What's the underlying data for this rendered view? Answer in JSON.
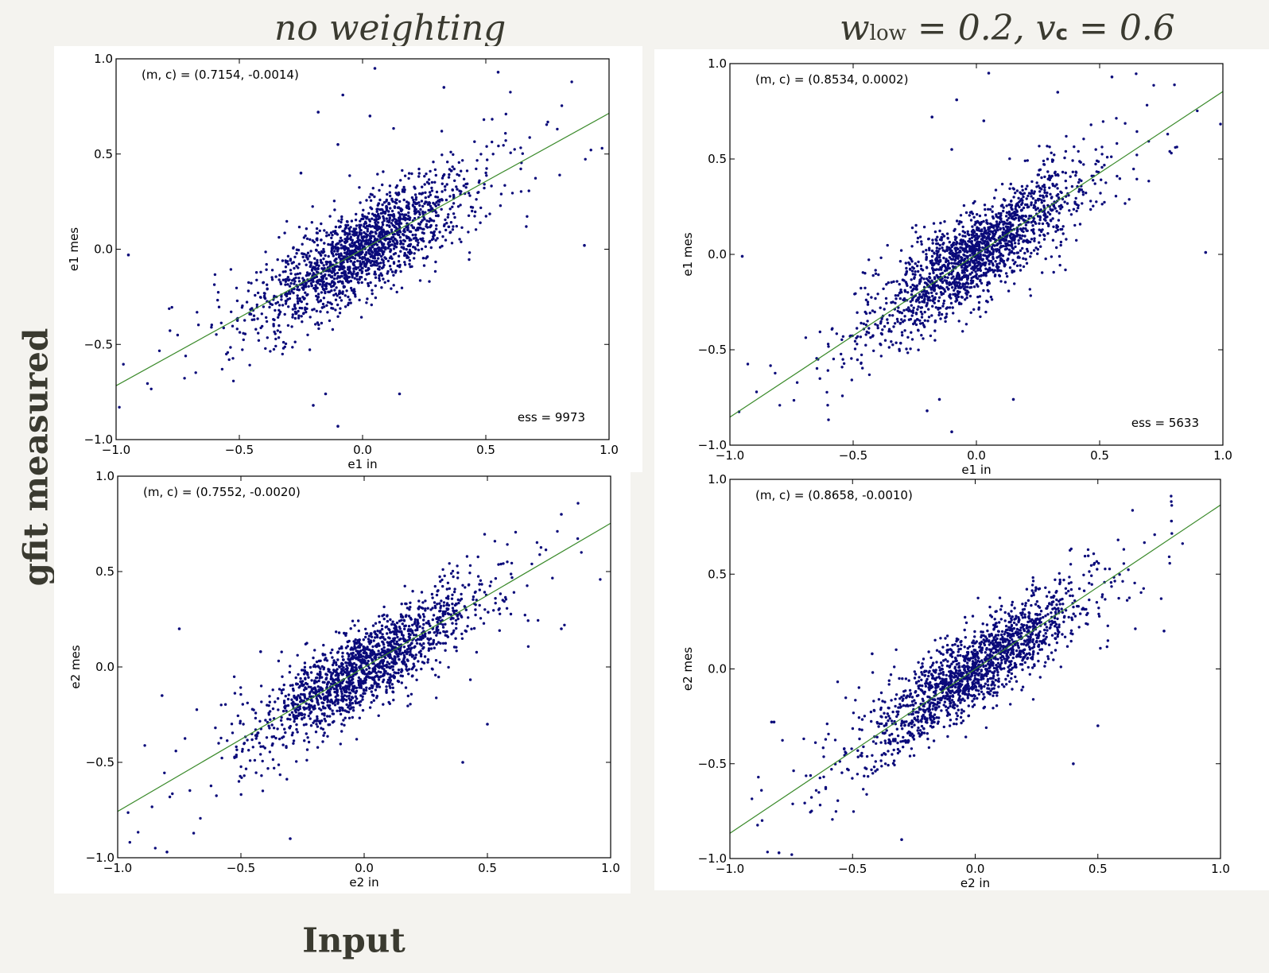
{
  "titles": {
    "left": "no weighting",
    "right_w": "w",
    "right_w_sub": "low",
    "right_mid": " = 0.2, ",
    "right_v": "v",
    "right_v_sub": "c",
    "right_end": " = 0.6"
  },
  "side_label": "gfit measured",
  "bottom_label": "Input",
  "colors": {
    "point": "#0a0a7a",
    "line": "#3a8a2a"
  },
  "chart_data": [
    {
      "id": "p1",
      "type": "scatter",
      "title": "",
      "xlabel": "e1 in",
      "ylabel": "e1 mes",
      "xlim": [
        -1.0,
        1.0
      ],
      "ylim": [
        -1.0,
        1.0
      ],
      "xticks": [
        "−1.0",
        "−0.5",
        "0.0",
        "0.5",
        "1.0"
      ],
      "yticks": [
        "−1.0",
        "−0.5",
        "0.0",
        "0.5",
        "1.0"
      ],
      "fit": {
        "m": 0.7154,
        "c": -0.0014
      },
      "annotation_top": "(m, c) = (0.7154, -0.0014)",
      "annotation_bottom": "ess = 9973",
      "n_points_rendered": 1800,
      "scatter_sigma": 0.11,
      "core_sigma_x": 0.2,
      "seed": 11,
      "outliers": [
        [
          -0.18,
          0.72
        ],
        [
          0.05,
          0.95
        ],
        [
          0.33,
          0.85
        ],
        [
          0.55,
          0.93
        ],
        [
          -0.08,
          0.81
        ],
        [
          0.03,
          0.7
        ],
        [
          -0.15,
          -0.76
        ],
        [
          -0.2,
          -0.82
        ],
        [
          -0.1,
          -0.93
        ],
        [
          0.15,
          -0.76
        ],
        [
          -0.25,
          0.4
        ],
        [
          -0.95,
          -0.03
        ],
        [
          0.9,
          0.02
        ],
        [
          -0.1,
          0.55
        ]
      ]
    },
    {
      "id": "p2",
      "type": "scatter",
      "title": "",
      "xlabel": "e1 in",
      "ylabel": "e1 mes",
      "xlim": [
        -1.0,
        1.0
      ],
      "ylim": [
        -1.0,
        1.0
      ],
      "xticks": [
        "−1.0",
        "−0.5",
        "0.0",
        "0.5",
        "1.0"
      ],
      "yticks": [
        "−1.0",
        "−0.5",
        "0.0",
        "0.5",
        "1.0"
      ],
      "fit": {
        "m": 0.8534,
        "c": 0.0002
      },
      "annotation_top": "(m, c) = (0.8534, 0.0002)",
      "annotation_bottom": "ess = 5633",
      "n_points_rendered": 1800,
      "scatter_sigma": 0.11,
      "core_sigma_x": 0.2,
      "seed": 23,
      "outliers": [
        [
          -0.18,
          0.72
        ],
        [
          0.05,
          0.95
        ],
        [
          0.33,
          0.85
        ],
        [
          0.55,
          0.93
        ],
        [
          -0.08,
          0.81
        ],
        [
          0.03,
          0.7
        ],
        [
          -0.15,
          -0.76
        ],
        [
          -0.2,
          -0.82
        ],
        [
          -0.1,
          -0.93
        ],
        [
          0.15,
          -0.76
        ],
        [
          -0.95,
          -0.01
        ],
        [
          0.93,
          0.01
        ],
        [
          -0.1,
          0.55
        ]
      ]
    },
    {
      "id": "p3",
      "type": "scatter",
      "title": "",
      "xlabel": "e2 in",
      "ylabel": "e2 mes",
      "xlim": [
        -1.0,
        1.0
      ],
      "ylim": [
        -1.0,
        1.0
      ],
      "xticks": [
        "−1.0",
        "−0.5",
        "0.0",
        "0.5",
        "1.0"
      ],
      "yticks": [
        "−1.0",
        "−0.5",
        "0.0",
        "0.5",
        "1.0"
      ],
      "fit": {
        "m": 0.7552,
        "c": -0.002
      },
      "annotation_top": "(m, c) = (0.7552, -0.0020)",
      "annotation_bottom": "",
      "n_points_rendered": 1700,
      "scatter_sigma": 0.1,
      "core_sigma_x": 0.21,
      "seed": 37,
      "outliers": [
        [
          -0.82,
          -0.15
        ],
        [
          -0.8,
          -0.97
        ],
        [
          0.8,
          0.8
        ],
        [
          -0.3,
          -0.9
        ],
        [
          0.5,
          -0.3
        ],
        [
          0.8,
          0.2
        ],
        [
          -0.75,
          0.2
        ],
        [
          -0.42,
          0.08
        ],
        [
          0.4,
          -0.5
        ]
      ]
    },
    {
      "id": "p4",
      "type": "scatter",
      "title": "",
      "xlabel": "e2 in",
      "ylabel": "e2 mes",
      "xlim": [
        -1.0,
        1.0
      ],
      "ylim": [
        -1.0,
        1.0
      ],
      "xticks": [
        "−1.0",
        "−0.5",
        "0.0",
        "0.5",
        "1.0"
      ],
      "yticks": [
        "−1.0",
        "−0.5",
        "0.0",
        "0.5",
        "1.0"
      ],
      "fit": {
        "m": 0.8658,
        "c": -0.001
      },
      "annotation_top": "(m, c) = (0.8658, -0.0010)",
      "annotation_bottom": "",
      "n_points_rendered": 1700,
      "scatter_sigma": 0.1,
      "core_sigma_x": 0.21,
      "seed": 51,
      "outliers": [
        [
          -0.82,
          -0.28
        ],
        [
          -0.8,
          -0.97
        ],
        [
          0.8,
          0.78
        ],
        [
          -0.3,
          -0.9
        ],
        [
          0.5,
          -0.3
        ],
        [
          0.77,
          0.2
        ],
        [
          -0.83,
          -0.28
        ],
        [
          -0.42,
          0.08
        ],
        [
          0.4,
          -0.5
        ]
      ]
    }
  ]
}
